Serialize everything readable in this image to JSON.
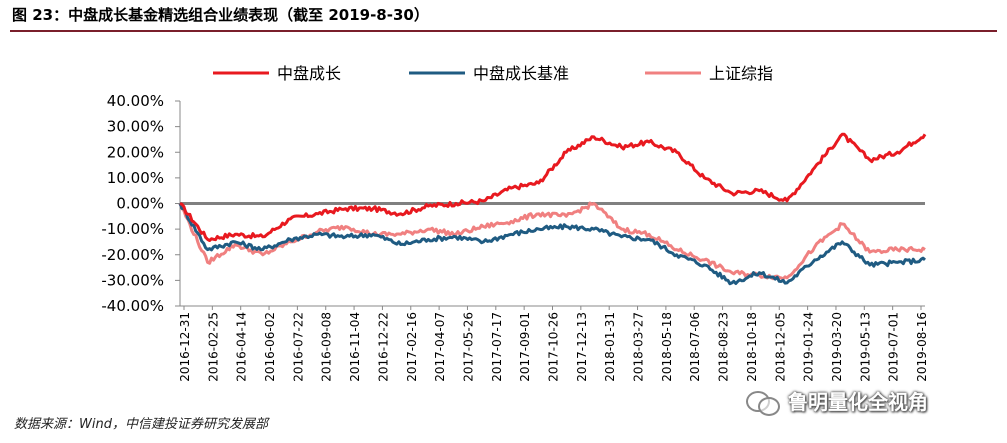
{
  "header": {
    "caption": "图 23：中盘成长基金精选组合业绩表现（截至 2019-8-30）"
  },
  "footer": {
    "source": "数据来源：Wind，中信建投证券研究发展部",
    "watermark": "鲁明量化全视角"
  },
  "colors": {
    "caption_rule": "#7a1f2b",
    "zero_line": "#808080"
  },
  "chart_data": {
    "type": "line",
    "title": "",
    "xlabel": "",
    "ylabel": "",
    "ylim": [
      -0.4,
      0.4
    ],
    "yticks": [
      "40.00%",
      "30.00%",
      "20.00%",
      "10.00%",
      "0.00%",
      "-10.00%",
      "-20.00%",
      "-30.00%",
      "-40.00%"
    ],
    "ytick_values": [
      0.4,
      0.3,
      0.2,
      0.1,
      0.0,
      -0.1,
      -0.2,
      -0.3,
      -0.4
    ],
    "xticks": [
      "2016-12-31",
      "2016-02-25",
      "2016-04-14",
      "2016-06-02",
      "2016-07-22",
      "2016-09-08",
      "2016-11-04",
      "2016-12-22",
      "2017-02-16",
      "2017-04-07",
      "2017-05-26",
      "2017-07-17",
      "2017-09-01",
      "2017-10-26",
      "2017-12-13",
      "2018-01-31",
      "2018-03-27",
      "2018-05-18",
      "2018-07-06",
      "2018-08-23",
      "2018-10-18",
      "2018-12-05",
      "2019-01-24",
      "2019-03-20",
      "2019-05-13",
      "2019-07-01",
      "2019-08-16"
    ],
    "legend_position": "top",
    "grid": false,
    "series": [
      {
        "name": "中盘成长",
        "color": "#e8191f",
        "values": [
          0.0,
          -0.14,
          -0.12,
          -0.13,
          -0.06,
          -0.04,
          -0.02,
          -0.02,
          -0.04,
          -0.01,
          0.0,
          0.01,
          0.06,
          0.08,
          0.2,
          0.26,
          0.22,
          0.24,
          0.2,
          0.1,
          0.04,
          0.05,
          0.01,
          0.14,
          0.27,
          0.17,
          0.2,
          0.27
        ]
      },
      {
        "name": "中盘成长基准",
        "color": "#1f5b82",
        "values": [
          0.0,
          -0.18,
          -0.15,
          -0.18,
          -0.14,
          -0.12,
          -0.13,
          -0.12,
          -0.16,
          -0.14,
          -0.13,
          -0.15,
          -0.12,
          -0.1,
          -0.09,
          -0.1,
          -0.13,
          -0.14,
          -0.2,
          -0.24,
          -0.31,
          -0.27,
          -0.31,
          -0.22,
          -0.15,
          -0.24,
          -0.23,
          -0.22
        ]
      },
      {
        "name": "上证综指",
        "color": "#f08080",
        "values": [
          0.0,
          -0.23,
          -0.16,
          -0.2,
          -0.15,
          -0.11,
          -0.09,
          -0.12,
          -0.12,
          -0.1,
          -0.12,
          -0.09,
          -0.07,
          -0.04,
          -0.05,
          0.0,
          -0.1,
          -0.12,
          -0.18,
          -0.22,
          -0.27,
          -0.28,
          -0.29,
          -0.17,
          -0.08,
          -0.19,
          -0.18,
          -0.18
        ]
      }
    ]
  }
}
